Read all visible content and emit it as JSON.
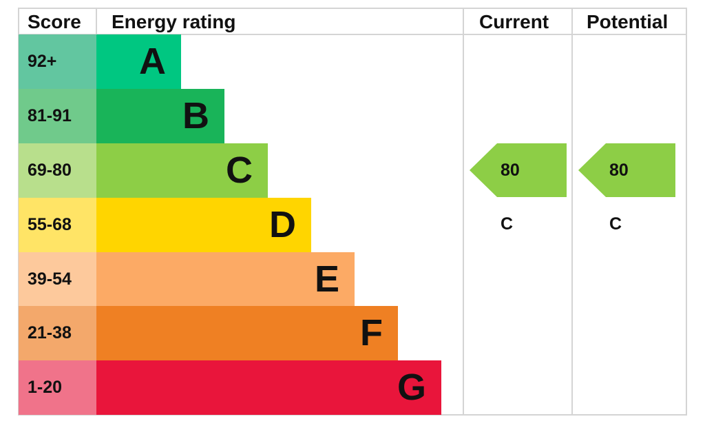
{
  "chart_data": {
    "type": "table",
    "headers": {
      "score": "Score",
      "rating": "Energy rating",
      "current": "Current",
      "potential": "Potential"
    },
    "bands": [
      {
        "letter": "A",
        "range": "92+",
        "color": "#00c781",
        "score_color": "#62c6a0"
      },
      {
        "letter": "B",
        "range": "81-91",
        "color": "#19b459",
        "score_color": "#70ca8b"
      },
      {
        "letter": "C",
        "range": "69-80",
        "color": "#8dce46",
        "score_color": "#b8df8c"
      },
      {
        "letter": "D",
        "range": "55-68",
        "color": "#ffd500",
        "score_color": "#ffe466"
      },
      {
        "letter": "E",
        "range": "39-54",
        "color": "#fcaa65",
        "score_color": "#fdc99c"
      },
      {
        "letter": "F",
        "range": "21-38",
        "color": "#ef8023",
        "score_color": "#f3a86b"
      },
      {
        "letter": "G",
        "range": "1-20",
        "color": "#e9153b",
        "score_color": "#f0738a"
      }
    ],
    "current": {
      "score": 80,
      "band": "C",
      "label": "80 C",
      "color": "#8dce46"
    },
    "potential": {
      "score": 80,
      "band": "C",
      "label": "80 C",
      "color": "#8dce46"
    }
  }
}
